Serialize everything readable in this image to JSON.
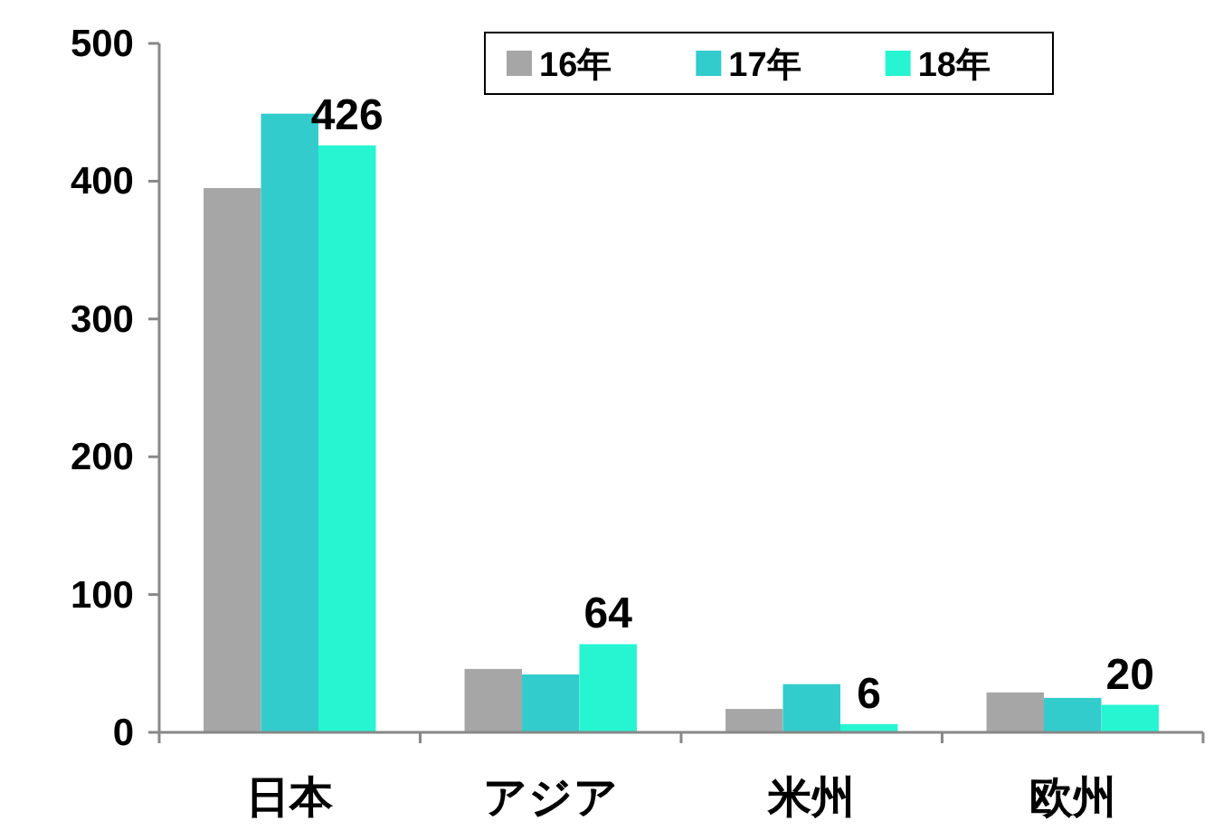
{
  "chart_data": {
    "type": "bar",
    "categories": [
      "日本",
      "アジア",
      "米州",
      "欧州"
    ],
    "series": [
      {
        "name": "16年",
        "color": "#a6a6a6",
        "values": [
          395,
          46,
          17,
          29
        ]
      },
      {
        "name": "17年",
        "color": "#33cccc",
        "values": [
          449,
          42,
          35,
          25
        ]
      },
      {
        "name": "18年",
        "color": "#27f5d2",
        "values": [
          426,
          64,
          6,
          20
        ],
        "value_labels": [
          "426",
          "64",
          "6",
          "20"
        ]
      }
    ],
    "ylim": [
      0,
      500
    ],
    "yticks": [
      0,
      100,
      200,
      300,
      400,
      500
    ],
    "legend": "top right",
    "grid": false
  }
}
